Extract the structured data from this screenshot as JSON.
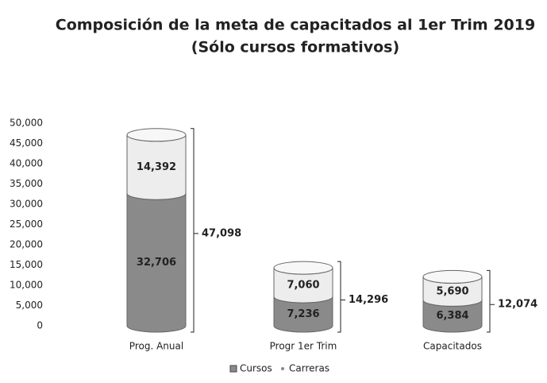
{
  "chart_data": {
    "type": "bar",
    "stacked": true,
    "title": "Composición de la meta de capacitados al 1er Trim 2019",
    "subtitle": "(Sólo cursos formativos)",
    "categories": [
      "Prog. Anual",
      "Progr 1er Trim",
      "Capacitados"
    ],
    "series": [
      {
        "name": "Cursos",
        "color": "#8a8a8a",
        "values": [
          32706,
          7236,
          6384
        ],
        "value_labels": [
          "32,706",
          "7,236",
          "6,384"
        ]
      },
      {
        "name": "Carreras",
        "color": "#ededed",
        "values": [
          14392,
          7060,
          5690
        ],
        "value_labels": [
          "14,392",
          "7,060",
          "5,690"
        ]
      }
    ],
    "totals": [
      47098,
      14296,
      12074
    ],
    "total_labels": [
      "47,098",
      "14,296",
      "12,074"
    ],
    "ylim": [
      0,
      50000
    ],
    "yticks": [
      0,
      {
        "value": 5000,
        "label": "5,000"
      },
      {
        "value": 10000,
        "label": "10,000"
      },
      {
        "value": 15000,
        "label": "15,000"
      },
      {
        "value": 20000,
        "label": "20,000"
      },
      {
        "value": 25000,
        "label": "25,000"
      },
      {
        "value": 30000,
        "label": "30,000"
      },
      {
        "value": 35000,
        "label": "35,000"
      },
      {
        "value": 40000,
        "label": "40,000"
      },
      {
        "value": 45000,
        "label": "45,000"
      },
      {
        "value": 50000,
        "label": "50,000"
      }
    ],
    "grid": false,
    "legend": "bottom"
  }
}
